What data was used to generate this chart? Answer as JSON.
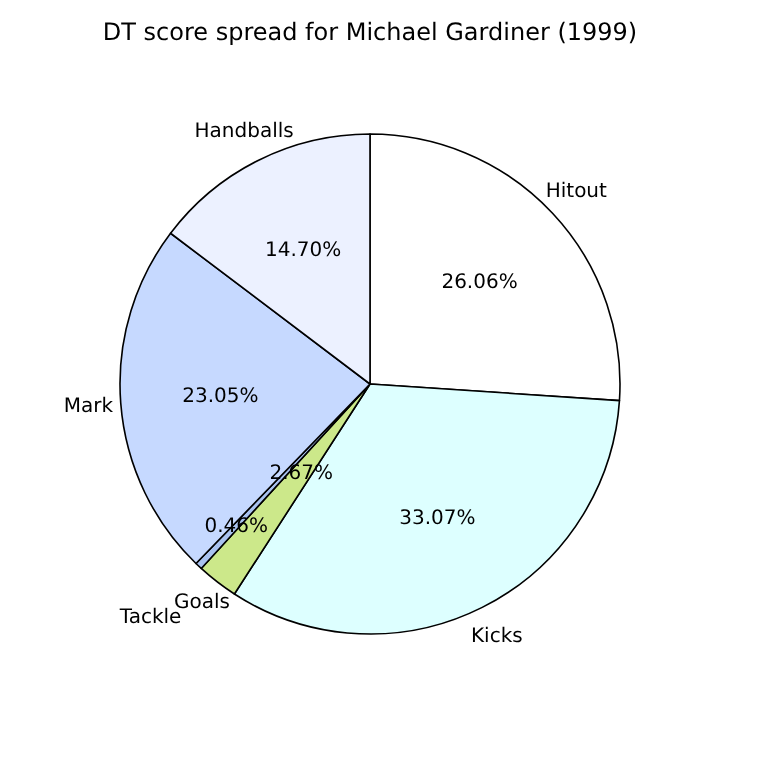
{
  "chart_data": {
    "type": "pie",
    "title": "DT score spread for Michael Gardiner (1999)",
    "categories": [
      "Hitout",
      "Kicks",
      "Goals",
      "Tackle",
      "Mark",
      "Handballs"
    ],
    "values": [
      26.06,
      33.07,
      2.67,
      0.46,
      23.05,
      14.7
    ],
    "value_labels": [
      "26.06%",
      "33.07%",
      "2.67%",
      "0.46%",
      "23.05%",
      "14.70%"
    ],
    "colors": [
      "#ffffff",
      "#ddffff",
      "#cce88a",
      "#a9c2f0",
      "#c6d9ff",
      "#ecf1ff"
    ]
  }
}
